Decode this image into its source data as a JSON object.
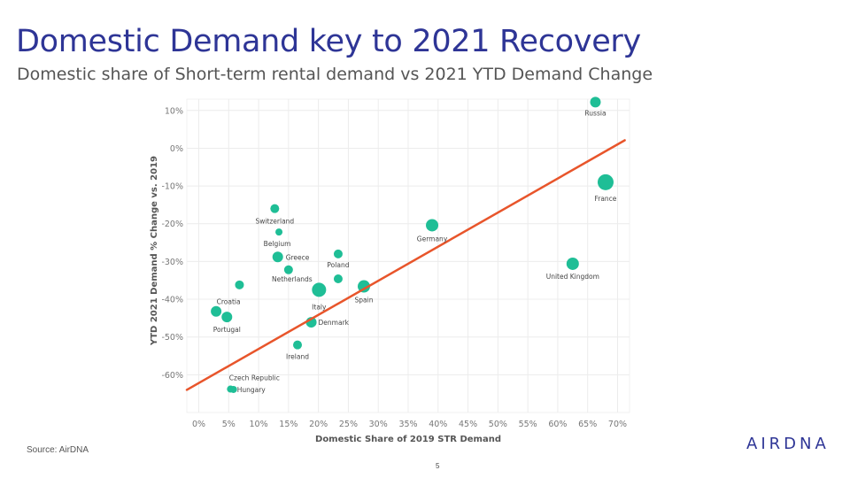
{
  "slide": {
    "title": "Domestic Demand key to 2021 Recovery",
    "subtitle": "Domestic share of Short-term rental demand vs 2021 YTD Demand Change",
    "source": "Source: AirDNA",
    "logo_text": "AIRDNA",
    "page_number": "5"
  },
  "colors": {
    "title": "#2E3596",
    "point": "#1FBE96",
    "trend": "#E8552B",
    "grid": "#ECECEC",
    "axis_text": "#777777",
    "label_text": "#444444"
  },
  "chart_data": {
    "type": "scatter",
    "xlabel": "Domestic Share of 2019 STR Demand",
    "ylabel": "YTD 2021 Demand % Change vs. 2019",
    "xlim": [
      -2,
      72
    ],
    "ylim": [
      -70,
      13
    ],
    "x_ticks": [
      0,
      5,
      10,
      15,
      20,
      25,
      30,
      35,
      40,
      45,
      50,
      55,
      60,
      65,
      70
    ],
    "x_tick_labels": [
      "0%",
      "5%",
      "10%",
      "15%",
      "20%",
      "25%",
      "30%",
      "35%",
      "40%",
      "45%",
      "50%",
      "55%",
      "60%",
      "65%",
      "70%"
    ],
    "y_ticks": [
      10,
      0,
      -10,
      -20,
      -30,
      -40,
      -50,
      -60
    ],
    "y_tick_labels": [
      "10%",
      "0%",
      "-10%",
      "-20%",
      "-30%",
      "-40%",
      "-50%",
      "-60%"
    ],
    "grid": true,
    "legend": "none",
    "points": [
      {
        "label": "Russia",
        "x": 66.3,
        "y": 12.2,
        "size": 6
      },
      {
        "label": "France",
        "x": 68.0,
        "y": -9.0,
        "size": 9
      },
      {
        "label": "United Kingdom",
        "x": 62.5,
        "y": -30.6,
        "size": 7
      },
      {
        "label": "Germany",
        "x": 39.0,
        "y": -20.4,
        "size": 7
      },
      {
        "label": "Switzerland",
        "x": 12.7,
        "y": -16.0,
        "size": 5
      },
      {
        "label": "Belgium",
        "x": 13.4,
        "y": -22.2,
        "size": 4
      },
      {
        "label": "Greece",
        "x": 13.2,
        "y": -28.8,
        "size": 6
      },
      {
        "label": "Netherlands",
        "x": 15.0,
        "y": -32.2,
        "size": 5
      },
      {
        "label": "Poland",
        "x": 23.3,
        "y": -28.0,
        "size": 5
      },
      {
        "label": "",
        "x": 23.3,
        "y": -34.6,
        "size": 5
      },
      {
        "label": "Spain",
        "x": 27.6,
        "y": -36.6,
        "size": 7
      },
      {
        "label": "Italy",
        "x": 20.1,
        "y": -37.5,
        "size": 8
      },
      {
        "label": "",
        "x": 6.8,
        "y": -36.2,
        "size": 5
      },
      {
        "label": "Croatia",
        "x": 2.9,
        "y": -43.2,
        "size": 6
      },
      {
        "label": "Portugal",
        "x": 4.7,
        "y": -44.7,
        "size": 6
      },
      {
        "label": "Denmark",
        "x": 18.8,
        "y": -46.1,
        "size": 6
      },
      {
        "label": "Ireland",
        "x": 16.5,
        "y": -52.1,
        "size": 5
      },
      {
        "label": "Czech Republic",
        "x": 5.3,
        "y": -63.8,
        "size": 4
      },
      {
        "label": "Hungary",
        "x": 5.8,
        "y": -63.9,
        "size": 4
      }
    ],
    "trendline": {
      "x": [
        -2,
        71.2
      ],
      "y": [
        -64.0,
        2.1
      ]
    }
  }
}
